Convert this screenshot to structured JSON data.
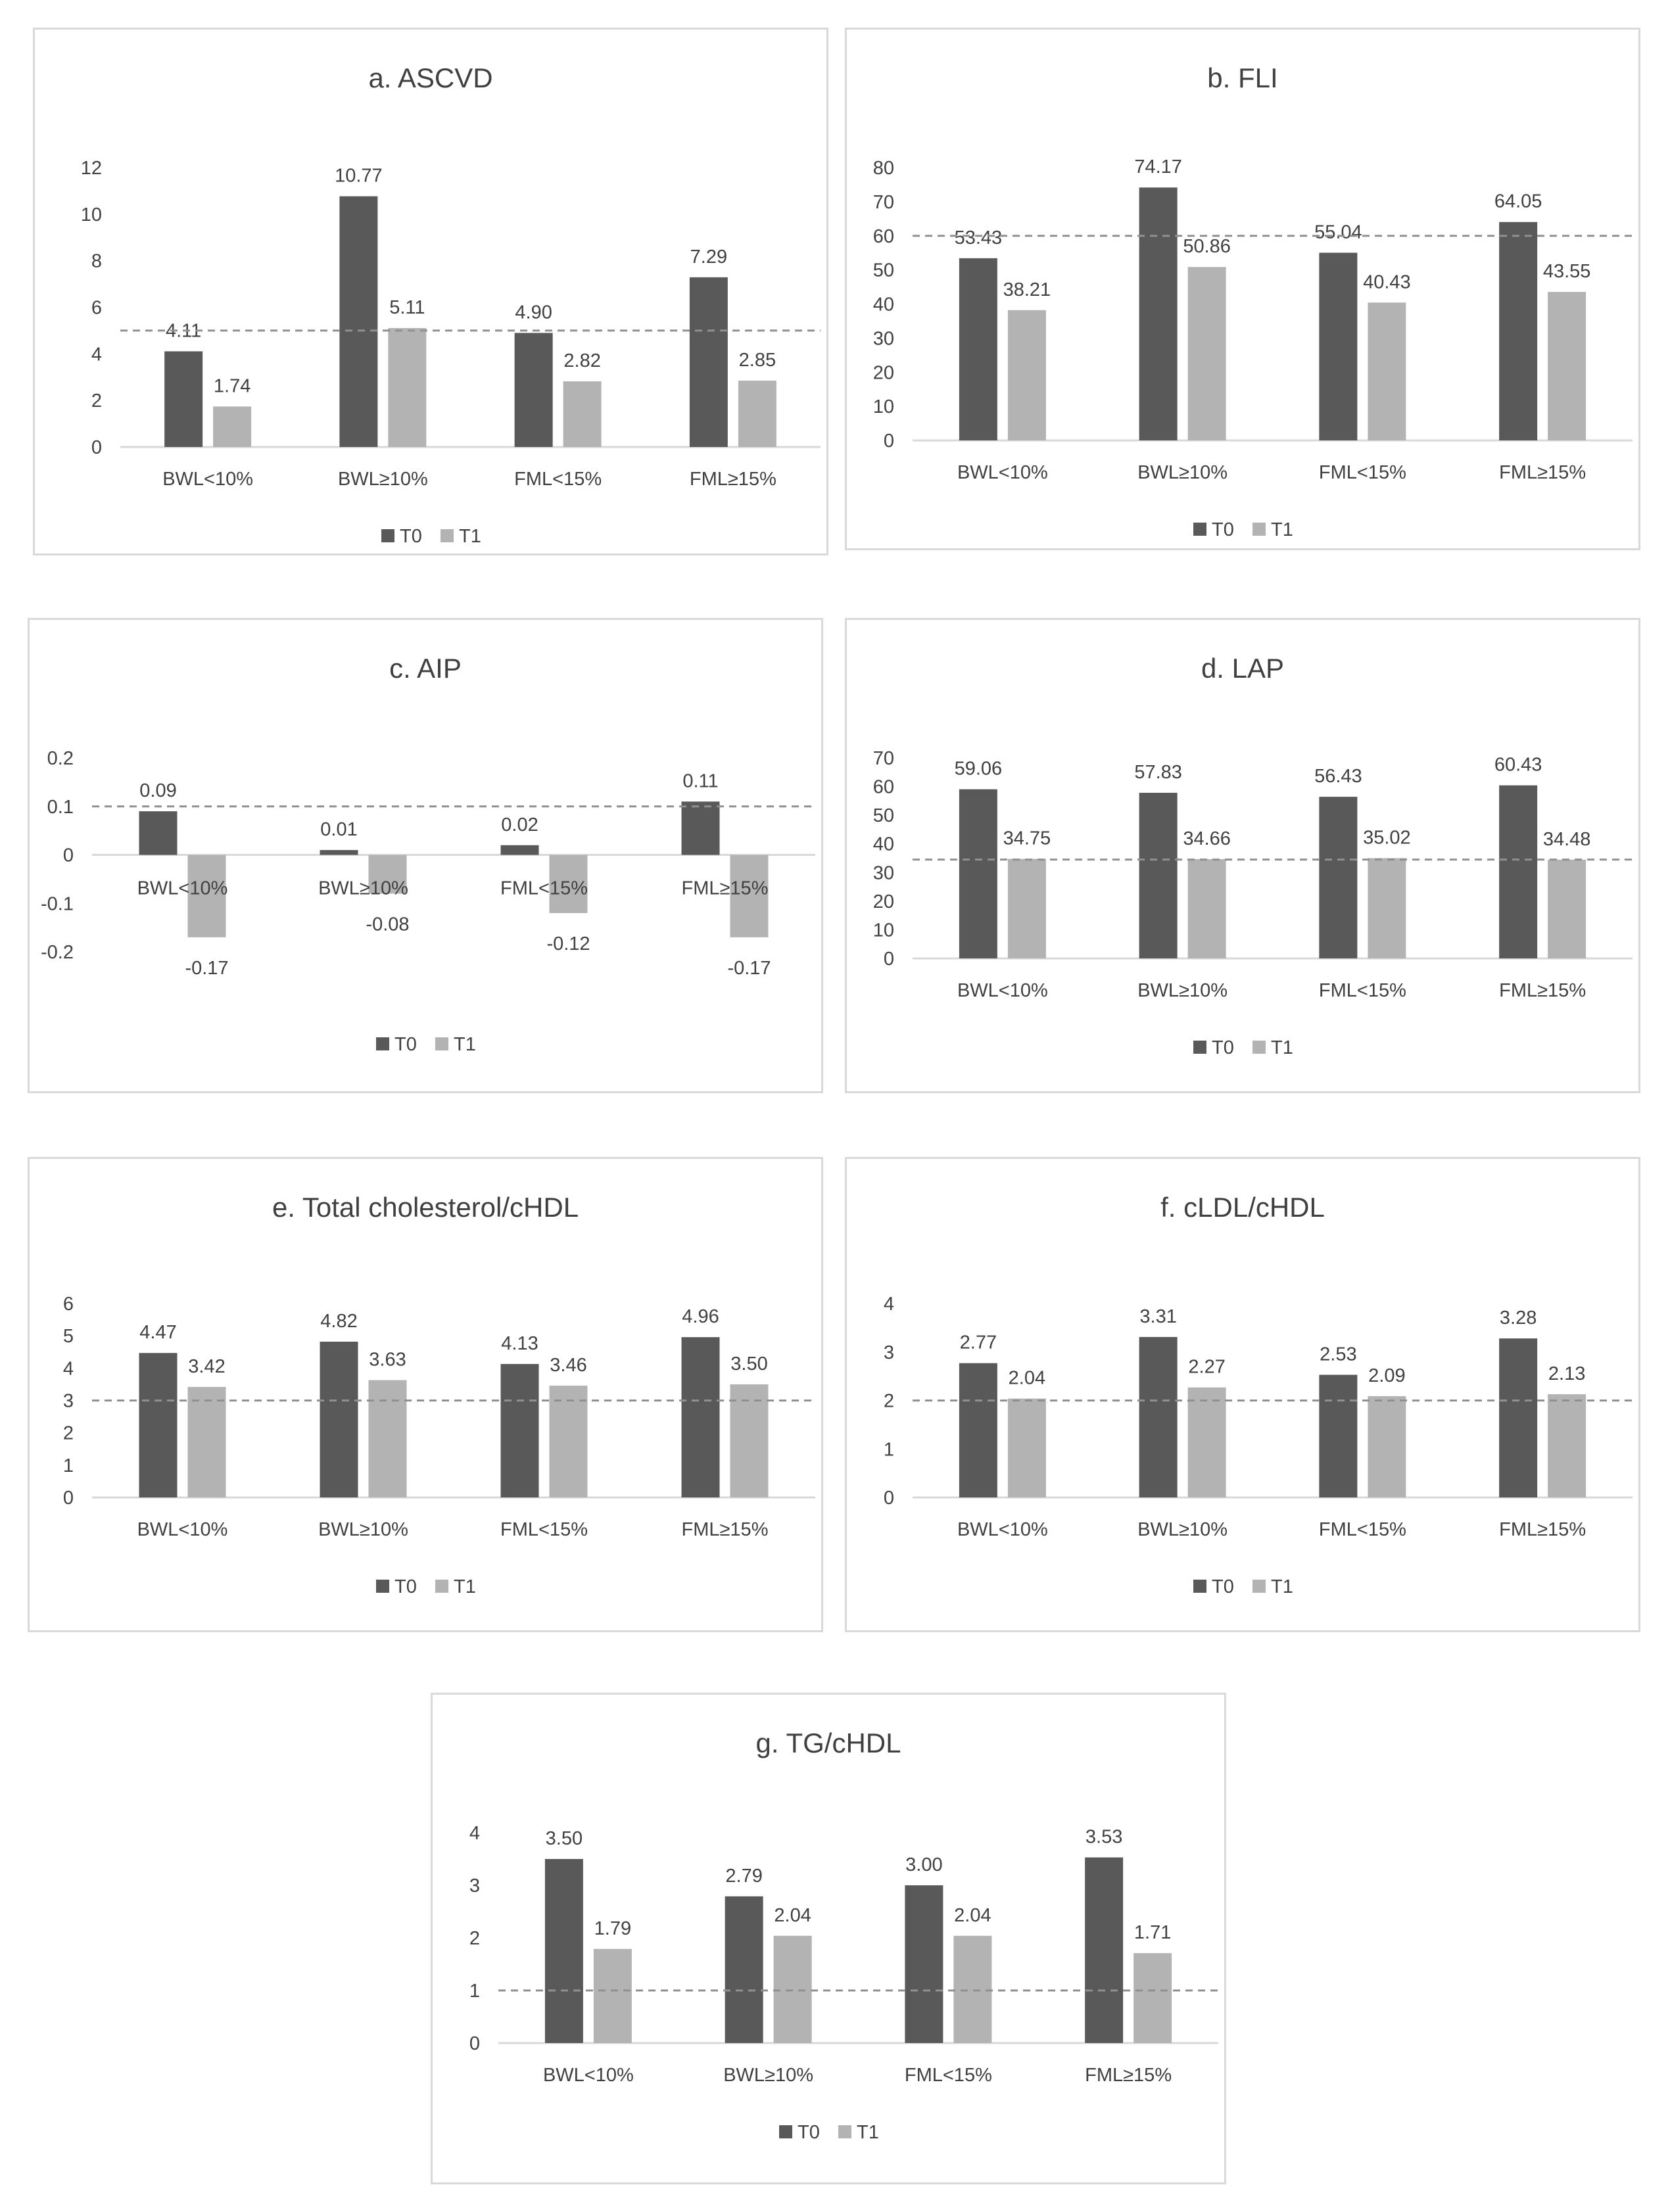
{
  "colors": {
    "t0": "#595959",
    "t1": "#b3b3b3",
    "axis": "#d9d9d9",
    "text": "#404040",
    "ref": "#909090"
  },
  "charts": [
    {
      "type": "bar",
      "title": "a. ASCVD",
      "categories": [
        "BWL<10%",
        "BWL≥10%",
        "FML<15%",
        "FML≥15%"
      ],
      "series": [
        {
          "name": "T0",
          "values": [
            4.11,
            10.77,
            4.9,
            7.29
          ]
        },
        {
          "name": "T1",
          "values": [
            1.74,
            5.11,
            2.82,
            2.85
          ]
        }
      ],
      "labels": {
        "T0": [
          "4.11",
          "10.77",
          "4.90",
          "7.29"
        ],
        "T1": [
          "1.74",
          "5.11",
          "2.82",
          "2.85"
        ]
      },
      "yticks": [
        "0",
        "2",
        "4",
        "6",
        "8",
        "10",
        "12"
      ],
      "ylim": [
        0,
        12
      ],
      "reference_line": 5,
      "legend": [
        "T0",
        "T1"
      ]
    },
    {
      "type": "bar",
      "title": "b. FLI",
      "categories": [
        "BWL<10%",
        "BWL≥10%",
        "FML<15%",
        "FML≥15%"
      ],
      "series": [
        {
          "name": "T0",
          "values": [
            53.43,
            74.17,
            55.04,
            64.05
          ]
        },
        {
          "name": "T1",
          "values": [
            38.21,
            50.86,
            40.43,
            43.55
          ]
        }
      ],
      "labels": {
        "T0": [
          "53.43",
          "74.17",
          "55.04",
          "64.05"
        ],
        "T1": [
          "38.21",
          "50.86",
          "40.43",
          "43.55"
        ]
      },
      "yticks": [
        "0",
        "10",
        "20",
        "30",
        "40",
        "50",
        "60",
        "70",
        "80"
      ],
      "ylim": [
        0,
        80
      ],
      "reference_line": 60,
      "legend": [
        "T0",
        "T1"
      ]
    },
    {
      "type": "bar",
      "title": "c. AIP",
      "categories": [
        "BWL<10%",
        "BWL≥10%",
        "FML<15%",
        "FML≥15%"
      ],
      "series": [
        {
          "name": "T0",
          "values": [
            0.09,
            0.01,
            0.02,
            0.11
          ]
        },
        {
          "name": "T1",
          "values": [
            -0.17,
            -0.08,
            -0.12,
            -0.17
          ]
        }
      ],
      "labels": {
        "T0": [
          "0.09",
          "0.01",
          "0.02",
          "0.11"
        ],
        "T1": [
          "-0.17",
          "-0.08",
          "-0.12",
          "-0.17"
        ]
      },
      "yticks": [
        "-0.2",
        "-0.1",
        "0",
        "0.1",
        "0.2"
      ],
      "ylim": [
        -0.2,
        0.2
      ],
      "reference_line": 0.1,
      "legend": [
        "T0",
        "T1"
      ]
    },
    {
      "type": "bar",
      "title": "d. LAP",
      "categories": [
        "BWL<10%",
        "BWL≥10%",
        "FML<15%",
        "FML≥15%"
      ],
      "series": [
        {
          "name": "T0",
          "values": [
            59.06,
            57.83,
            56.43,
            60.43
          ]
        },
        {
          "name": "T1",
          "values": [
            34.75,
            34.66,
            35.02,
            34.48
          ]
        }
      ],
      "labels": {
        "T0": [
          "59.06",
          "57.83",
          "56.43",
          "60.43"
        ],
        "T1": [
          "34.75",
          "34.66",
          "35.02",
          "34.48"
        ]
      },
      "yticks": [
        "0",
        "10",
        "20",
        "30",
        "40",
        "50",
        "60",
        "70"
      ],
      "ylim": [
        0,
        70
      ],
      "reference_line": 34.5,
      "legend": [
        "T0",
        "T1"
      ]
    },
    {
      "type": "bar",
      "title": "e. Total cholesterol/cHDL",
      "categories": [
        "BWL<10%",
        "BWL≥10%",
        "FML<15%",
        "FML≥15%"
      ],
      "series": [
        {
          "name": "T0",
          "values": [
            4.47,
            4.82,
            4.13,
            4.96
          ]
        },
        {
          "name": "T1",
          "values": [
            3.42,
            3.63,
            3.46,
            3.5
          ]
        }
      ],
      "labels": {
        "T0": [
          "4.47",
          "4.82",
          "4.13",
          "4.96"
        ],
        "T1": [
          "3.42",
          "3.63",
          "3.46",
          "3.50"
        ]
      },
      "yticks": [
        "0",
        "1",
        "2",
        "3",
        "4",
        "5",
        "6"
      ],
      "ylim": [
        0,
        6
      ],
      "reference_line": 3,
      "legend": [
        "T0",
        "T1"
      ]
    },
    {
      "type": "bar",
      "title": "f. cLDL/cHDL",
      "categories": [
        "BWL<10%",
        "BWL≥10%",
        "FML<15%",
        "FML≥15%"
      ],
      "series": [
        {
          "name": "T0",
          "values": [
            2.77,
            3.31,
            2.53,
            3.28
          ]
        },
        {
          "name": "T1",
          "values": [
            2.04,
            2.27,
            2.09,
            2.13
          ]
        }
      ],
      "labels": {
        "T0": [
          "2.77",
          "3.31",
          "2.53",
          "3.28"
        ],
        "T1": [
          "2.04",
          "2.27",
          "2.09",
          "2.13"
        ]
      },
      "yticks": [
        "0",
        "1",
        "2",
        "3",
        "4"
      ],
      "ylim": [
        0,
        4
      ],
      "reference_line": 2,
      "legend": [
        "T0",
        "T1"
      ]
    },
    {
      "type": "bar",
      "title": "g. TG/cHDL",
      "categories": [
        "BWL<10%",
        "BWL≥10%",
        "FML<15%",
        "FML≥15%"
      ],
      "series": [
        {
          "name": "T0",
          "values": [
            3.5,
            2.79,
            3.0,
            3.53
          ]
        },
        {
          "name": "T1",
          "values": [
            1.79,
            2.04,
            2.04,
            1.71
          ]
        }
      ],
      "labels": {
        "T0": [
          "3.50",
          "2.79",
          "3.00",
          "3.53"
        ],
        "T1": [
          "1.79",
          "2.04",
          "2.04",
          "1.71"
        ]
      },
      "yticks": [
        "0",
        "1",
        "2",
        "3",
        "4"
      ],
      "ylim": [
        0,
        4
      ],
      "reference_line": 1,
      "legend": [
        "T0",
        "T1"
      ]
    }
  ]
}
